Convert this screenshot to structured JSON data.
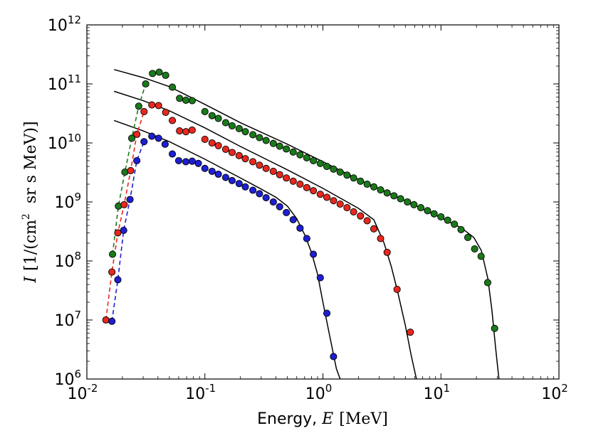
{
  "chart_data": {
    "type": "scatter",
    "xscale": "log",
    "yscale": "log",
    "xlim": [
      0.01,
      100
    ],
    "ylim": [
      1000000,
      1000000000000
    ],
    "xlabel": {
      "prefix": "Energy, ",
      "symbol": "E",
      "unit": "[MeV]"
    },
    "ylabel": {
      "symbol": "I",
      "unit_part1": "[1/(cm",
      "unit_sup": "2",
      "unit_part2": "  sr s MeV)]"
    },
    "x_ticks": [
      {
        "value": 0.01,
        "base": "10",
        "exp": "-2"
      },
      {
        "value": 0.1,
        "base": "10",
        "exp": "-1"
      },
      {
        "value": 1,
        "base": "10",
        "exp": "0"
      },
      {
        "value": 10,
        "base": "10",
        "exp": "1"
      },
      {
        "value": 100,
        "base": "10",
        "exp": "2"
      }
    ],
    "y_ticks": [
      {
        "value": 1000000,
        "base": "10",
        "exp": "6"
      },
      {
        "value": 10000000,
        "base": "10",
        "exp": "7"
      },
      {
        "value": 100000000,
        "base": "10",
        "exp": "8"
      },
      {
        "value": 1000000000,
        "base": "10",
        "exp": "9"
      },
      {
        "value": 10000000000,
        "base": "10",
        "exp": "10"
      },
      {
        "value": 100000000000,
        "base": "10",
        "exp": "11"
      },
      {
        "value": 1000000000000,
        "base": "10",
        "exp": "12"
      }
    ],
    "series": [
      {
        "name": "green",
        "color": "#1a7a1a",
        "points": [
          [
            0.0165,
            130000000
          ],
          [
            0.0185,
            850000000
          ],
          [
            0.021,
            3200000000
          ],
          [
            0.024,
            12000000000
          ],
          [
            0.0275,
            42000000000
          ],
          [
            0.0315,
            100000000000
          ],
          [
            0.036,
            150000000000
          ],
          [
            0.041,
            158000000000
          ],
          [
            0.0465,
            140000000000
          ],
          [
            0.053,
            88000000000
          ],
          [
            0.061,
            57000000000
          ],
          [
            0.069,
            53000000000
          ],
          [
            0.078,
            52000000000
          ],
          [
            0.1,
            34000000000
          ],
          [
            0.115,
            29000000000
          ],
          [
            0.13,
            26000000000
          ],
          [
            0.15,
            22000000000
          ],
          [
            0.17,
            19500000000
          ],
          [
            0.195,
            17500000000
          ],
          [
            0.22,
            15500000000
          ],
          [
            0.255,
            13800000000
          ],
          [
            0.29,
            12300000000
          ],
          [
            0.33,
            11000000000
          ],
          [
            0.38,
            9800000000
          ],
          [
            0.43,
            8800000000
          ],
          [
            0.49,
            7900000000
          ],
          [
            0.56,
            7000000000
          ],
          [
            0.64,
            6300000000
          ],
          [
            0.73,
            5600000000
          ],
          [
            0.83,
            5000000000
          ],
          [
            0.95,
            4500000000
          ],
          [
            1.08,
            4000000000
          ],
          [
            1.23,
            3600000000
          ],
          [
            1.4,
            3200000000
          ],
          [
            1.6,
            2850000000
          ],
          [
            1.82,
            2550000000
          ],
          [
            2.08,
            2250000000
          ],
          [
            2.37,
            2000000000
          ],
          [
            2.7,
            1800000000
          ],
          [
            3.08,
            1600000000
          ],
          [
            3.5,
            1420000000
          ],
          [
            4,
            1270000000
          ],
          [
            4.55,
            1130000000
          ],
          [
            5.2,
            1000000000
          ],
          [
            5.9,
            900000000
          ],
          [
            6.75,
            800000000
          ],
          [
            7.7,
            710000000
          ],
          [
            8.75,
            630000000
          ],
          [
            10,
            560000000
          ],
          [
            11.4,
            490000000
          ],
          [
            13,
            420000000
          ],
          [
            14.8,
            340000000
          ],
          [
            16.9,
            250000000
          ],
          [
            19.3,
            160000000
          ],
          [
            21.9,
            120000000
          ],
          [
            24.9,
            43000000
          ],
          [
            28.5,
            7200000
          ]
        ],
        "dashed": [
          [
            0.0165,
            130000000
          ],
          [
            0.0185,
            850000000
          ],
          [
            0.021,
            3200000000
          ],
          [
            0.024,
            12000000000
          ],
          [
            0.0275,
            42000000000
          ],
          [
            0.0315,
            100000000000
          ]
        ],
        "fit": [
          [
            0.017,
            175000000000
          ],
          [
            0.03,
            128000000000
          ],
          [
            0.05,
            90000000000
          ],
          [
            0.1,
            45000000000
          ],
          [
            0.2,
            22000000000
          ],
          [
            0.5,
            9500000000
          ],
          [
            1,
            4800000000
          ],
          [
            2,
            2400000000
          ],
          [
            5,
            1050000000
          ],
          [
            10,
            540000000
          ],
          [
            15,
            360000000
          ],
          [
            19,
            250000000
          ],
          [
            22,
            150000000
          ],
          [
            25,
            50000000
          ],
          [
            27,
            15000000
          ],
          [
            29,
            3500000
          ],
          [
            31,
            1000000
          ]
        ]
      },
      {
        "name": "red",
        "color": "#e8281e",
        "points": [
          [
            0.0145,
            10000000
          ],
          [
            0.0163,
            65000000
          ],
          [
            0.0183,
            300000000
          ],
          [
            0.0207,
            900000000
          ],
          [
            0.0235,
            3400000000
          ],
          [
            0.0265,
            14000000000
          ],
          [
            0.0305,
            34000000000
          ],
          [
            0.0355,
            44000000000
          ],
          [
            0.0405,
            43000000000
          ],
          [
            0.0465,
            33000000000
          ],
          [
            0.053,
            24000000000
          ],
          [
            0.061,
            16000000000
          ],
          [
            0.069,
            15500000000
          ],
          [
            0.078,
            16500000000
          ],
          [
            0.1,
            11500000000
          ],
          [
            0.115,
            10000000000
          ],
          [
            0.13,
            9000000000
          ],
          [
            0.15,
            7800000000
          ],
          [
            0.17,
            6900000000
          ],
          [
            0.195,
            6100000000
          ],
          [
            0.22,
            5400000000
          ],
          [
            0.255,
            4800000000
          ],
          [
            0.29,
            4200000000
          ],
          [
            0.33,
            3700000000
          ],
          [
            0.38,
            3300000000
          ],
          [
            0.43,
            2900000000
          ],
          [
            0.49,
            2550000000
          ],
          [
            0.56,
            2250000000
          ],
          [
            0.64,
            2000000000
          ],
          [
            0.73,
            1750000000
          ],
          [
            0.83,
            1550000000
          ],
          [
            0.95,
            1350000000
          ],
          [
            1.08,
            1200000000
          ],
          [
            1.23,
            1050000000
          ],
          [
            1.4,
            920000000
          ],
          [
            1.6,
            800000000
          ],
          [
            1.82,
            680000000
          ],
          [
            2.08,
            580000000
          ],
          [
            2.37,
            480000000
          ],
          [
            2.7,
            350000000
          ],
          [
            3.08,
            240000000
          ],
          [
            3.5,
            140000000
          ],
          [
            4.25,
            33000000
          ],
          [
            5.5,
            6200000
          ]
        ],
        "dashed": [
          [
            0.0145,
            10000000
          ],
          [
            0.0163,
            65000000
          ],
          [
            0.0183,
            300000000
          ],
          [
            0.0207,
            900000000
          ],
          [
            0.0235,
            3400000000
          ],
          [
            0.0265,
            14000000000
          ],
          [
            0.0305,
            34000000000
          ]
        ],
        "fit": [
          [
            0.017,
            75000000000
          ],
          [
            0.03,
            52000000000
          ],
          [
            0.05,
            35000000000
          ],
          [
            0.1,
            18000000000
          ],
          [
            0.2,
            8700000000
          ],
          [
            0.5,
            3500000000
          ],
          [
            1,
            1700000000
          ],
          [
            2,
            780000000
          ],
          [
            2.7,
            500000000
          ],
          [
            3.3,
            200000000
          ],
          [
            3.8,
            80000000
          ],
          [
            4.3,
            30000000
          ],
          [
            5,
            8000000
          ],
          [
            5.6,
            2500000
          ],
          [
            6.2,
            1000000
          ]
        ]
      },
      {
        "name": "blue",
        "color": "#1e1ed2",
        "points": [
          [
            0.0163,
            9500000
          ],
          [
            0.0183,
            48000000
          ],
          [
            0.0205,
            330000000
          ],
          [
            0.0232,
            1100000000
          ],
          [
            0.0265,
            5000000000
          ],
          [
            0.0305,
            10500000000
          ],
          [
            0.0355,
            13000000000
          ],
          [
            0.0405,
            12000000000
          ],
          [
            0.046,
            9500000000
          ],
          [
            0.053,
            6500000000
          ],
          [
            0.06,
            5000000000
          ],
          [
            0.069,
            4800000000
          ],
          [
            0.078,
            4900000000
          ],
          [
            0.088,
            4500000000
          ],
          [
            0.1,
            3700000000
          ],
          [
            0.115,
            3300000000
          ],
          [
            0.13,
            2950000000
          ],
          [
            0.15,
            2600000000
          ],
          [
            0.17,
            2300000000
          ],
          [
            0.195,
            2050000000
          ],
          [
            0.22,
            1800000000
          ],
          [
            0.255,
            1580000000
          ],
          [
            0.29,
            1380000000
          ],
          [
            0.33,
            1180000000
          ],
          [
            0.38,
            1000000000
          ],
          [
            0.43,
            830000000
          ],
          [
            0.49,
            660000000
          ],
          [
            0.56,
            500000000
          ],
          [
            0.64,
            360000000
          ],
          [
            0.73,
            240000000
          ],
          [
            0.83,
            130000000
          ],
          [
            0.95,
            52000000
          ],
          [
            1.08,
            13000000
          ],
          [
            1.23,
            2400000
          ]
        ],
        "dashed": [
          [
            0.0163,
            9500000
          ],
          [
            0.0183,
            48000000
          ],
          [
            0.0205,
            330000000
          ],
          [
            0.0232,
            1100000000
          ],
          [
            0.0265,
            5000000000
          ],
          [
            0.0305,
            10500000000
          ]
        ],
        "fit": [
          [
            0.017,
            24000000000
          ],
          [
            0.03,
            16000000000
          ],
          [
            0.05,
            10500000000
          ],
          [
            0.1,
            5300000000
          ],
          [
            0.2,
            2550000000
          ],
          [
            0.3,
            1650000000
          ],
          [
            0.4,
            1200000000
          ],
          [
            0.5,
            850000000
          ],
          [
            0.6,
            520000000
          ],
          [
            0.7,
            280000000
          ],
          [
            0.8,
            140000000
          ],
          [
            0.9,
            60000000
          ],
          [
            1,
            20000000
          ],
          [
            1.15,
            5000000
          ],
          [
            1.3,
            1500000
          ],
          [
            1.4,
            1000000
          ]
        ]
      }
    ]
  }
}
